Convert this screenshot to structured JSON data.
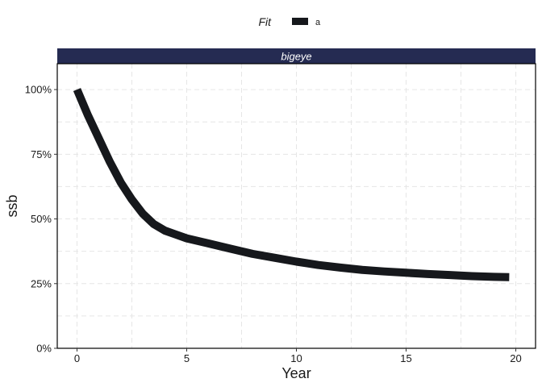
{
  "chart_data": {
    "type": "line",
    "facet": "bigeye",
    "xlabel": "Year",
    "ylabel": "ssb",
    "xlim": [
      -0.9,
      20.9
    ],
    "ylim": [
      0,
      1.1
    ],
    "x_ticks": [
      0,
      5,
      10,
      15,
      20
    ],
    "x_tick_labels": [
      "0",
      "5",
      "10",
      "15",
      "20"
    ],
    "y_ticks": [
      0,
      0.25,
      0.5,
      0.75,
      1.0
    ],
    "y_tick_labels": [
      "0%",
      "25%",
      "50%",
      "75%",
      "100%"
    ],
    "grid": true,
    "legend": {
      "title": "Fit",
      "position": "top",
      "entries": [
        "a"
      ]
    },
    "colors": {
      "line": "#16181c",
      "strip": "#252b52",
      "grid": "#e6e6e6"
    },
    "series": [
      {
        "name": "a",
        "x": [
          0,
          0.5,
          1,
          1.5,
          2,
          2.5,
          3,
          3.5,
          4,
          4.5,
          5,
          6,
          7,
          8,
          9,
          10,
          11,
          12,
          13,
          14,
          15,
          16,
          17,
          18,
          19,
          19.7
        ],
        "y": [
          1.0,
          0.9,
          0.81,
          0.72,
          0.64,
          0.575,
          0.52,
          0.48,
          0.455,
          0.44,
          0.425,
          0.405,
          0.385,
          0.365,
          0.35,
          0.335,
          0.322,
          0.312,
          0.303,
          0.297,
          0.292,
          0.287,
          0.283,
          0.279,
          0.276,
          0.275
        ]
      }
    ]
  }
}
